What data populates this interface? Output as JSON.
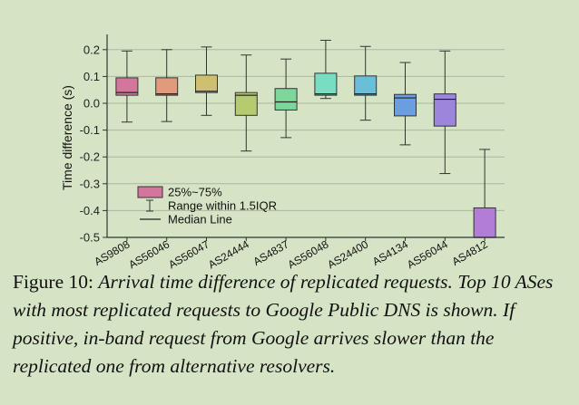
{
  "chart_data": {
    "type": "box",
    "ylabel": "Time difference (s)",
    "ylim": [
      -0.5,
      0.25
    ],
    "yticks": [
      0.2,
      0.1,
      0.0,
      -0.1,
      -0.2,
      -0.3,
      -0.4,
      -0.5
    ],
    "ytick_labels": [
      "0.2",
      "0.1",
      "0.0",
      "-0.1",
      "-0.2",
      "-0.3",
      "-0.4",
      "-0.5"
    ],
    "grid": true,
    "legend_position": "lower-left",
    "legend": [
      {
        "kind": "box",
        "label": "25%~75%"
      },
      {
        "kind": "whisker",
        "label": "Range within 1.5IQR"
      },
      {
        "kind": "median",
        "label": "Median Line"
      }
    ],
    "categories": [
      "AS9808",
      "AS56046",
      "AS56047",
      "AS24444",
      "AS4837",
      "AS56048",
      "AS24400",
      "AS4134",
      "AS56044",
      "AS4812"
    ],
    "boxes": [
      {
        "min": -0.07,
        "q1": 0.03,
        "median": 0.04,
        "q3": 0.095,
        "max": 0.195,
        "color": "#d4769c"
      },
      {
        "min": -0.068,
        "q1": 0.03,
        "median": 0.035,
        "q3": 0.095,
        "max": 0.2,
        "color": "#e09a7c"
      },
      {
        "min": -0.045,
        "q1": 0.04,
        "median": 0.045,
        "q3": 0.105,
        "max": 0.21,
        "color": "#cfc070"
      },
      {
        "min": -0.178,
        "q1": -0.045,
        "median": 0.03,
        "q3": 0.04,
        "max": 0.18,
        "color": "#b4cc6e"
      },
      {
        "min": -0.128,
        "q1": -0.025,
        "median": 0.005,
        "q3": 0.055,
        "max": 0.165,
        "color": "#7ed79a"
      },
      {
        "min": 0.018,
        "q1": 0.03,
        "median": 0.035,
        "q3": 0.112,
        "max": 0.235,
        "color": "#78dec2"
      },
      {
        "min": -0.063,
        "q1": 0.03,
        "median": 0.035,
        "q3": 0.102,
        "max": 0.212,
        "color": "#6bbed8"
      },
      {
        "min": -0.155,
        "q1": -0.047,
        "median": 0.02,
        "q3": 0.033,
        "max": 0.152,
        "color": "#6a9ee0"
      },
      {
        "min": -0.262,
        "q1": -0.085,
        "median": 0.015,
        "q3": 0.035,
        "max": 0.195,
        "color": "#9b86dc"
      },
      {
        "min": -0.5,
        "q1": -0.5,
        "median": -0.5,
        "q3": -0.39,
        "max": -0.172,
        "color": "#b27dd6"
      }
    ]
  },
  "caption": {
    "label": "Figure 10:",
    "text": "Arrival time difference of replicated requests. Top 10 ASes with most replicated requests to Google Public DNS is shown. If positive, in-band request from Google arrives slower than the replicated one from alternative resolvers."
  }
}
